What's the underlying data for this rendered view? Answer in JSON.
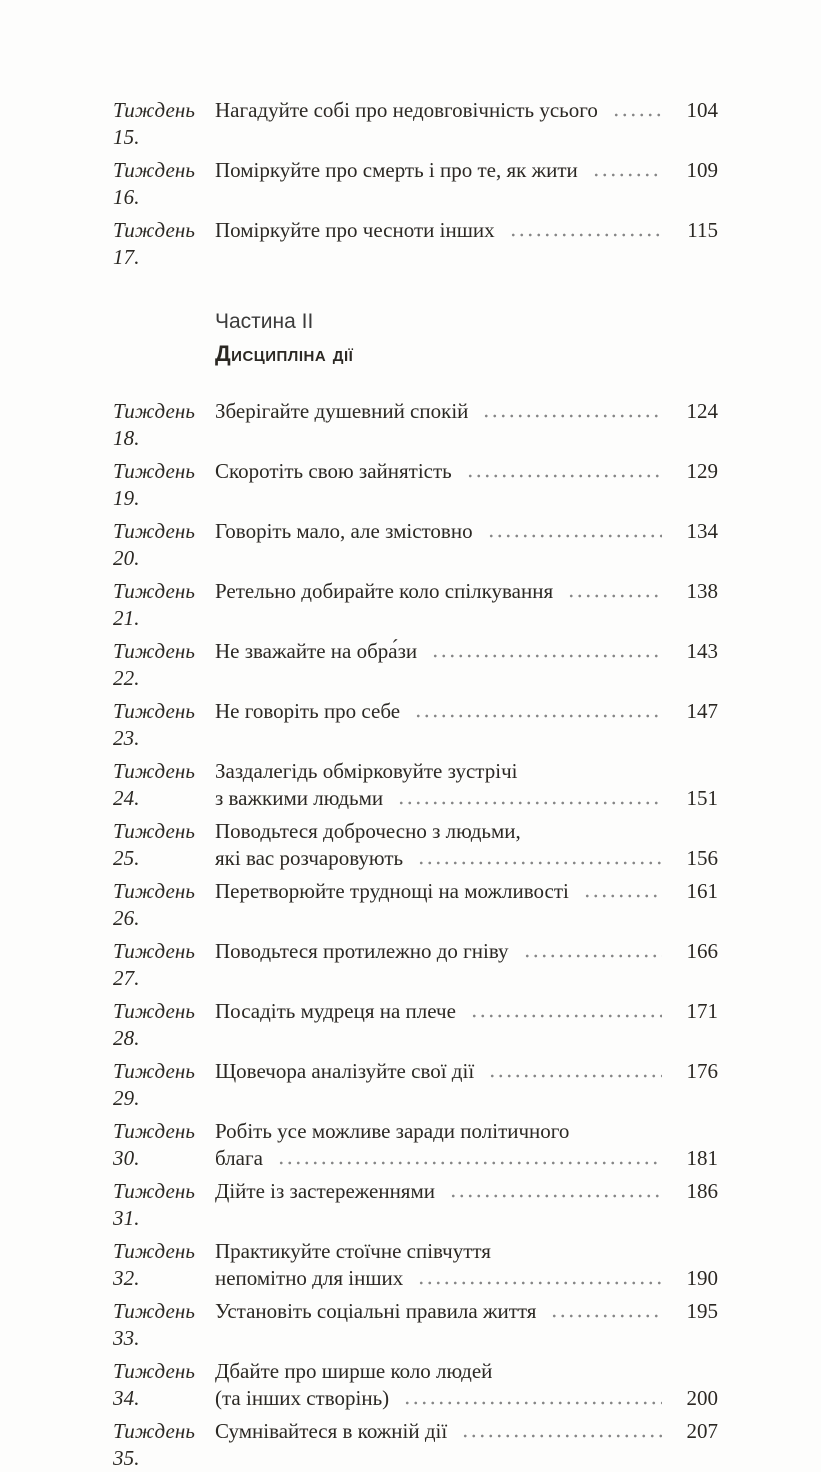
{
  "page": {
    "background_color": "#fdfdfc",
    "text_color": "#2b2823",
    "leader_dot_color": "#858585",
    "heading_color": "#3b3b3b"
  },
  "heading": {
    "part_label": "Частина II",
    "part_title": "Дисципліна дії"
  },
  "toc": {
    "part1": [
      {
        "label": "Тиждень 15.",
        "lines": [
          "Нагадуйте собі про недовговічність усього"
        ],
        "page": "104"
      },
      {
        "label": "Тиждень 16.",
        "lines": [
          "Поміркуйте про смерть і про те, як жити"
        ],
        "page": "109"
      },
      {
        "label": "Тиждень 17.",
        "lines": [
          "Поміркуйте про чесноти інших"
        ],
        "page": "115"
      }
    ],
    "part2": [
      {
        "label": "Тиждень 18.",
        "lines": [
          "Зберігайте душевний спокій"
        ],
        "page": "124"
      },
      {
        "label": "Тиждень 19.",
        "lines": [
          "Скоротіть свою зайнятість"
        ],
        "page": "129"
      },
      {
        "label": "Тиждень 20.",
        "lines": [
          "Говоріть мало, але змістовно"
        ],
        "page": "134"
      },
      {
        "label": "Тиждень 21.",
        "lines": [
          "Ретельно добирайте коло спілкування"
        ],
        "page": "138"
      },
      {
        "label": "Тиждень 22.",
        "lines": [
          "Не зважайте на обра́зи"
        ],
        "page": "143"
      },
      {
        "label": "Тиждень 23.",
        "lines": [
          "Не говоріть про себе"
        ],
        "page": "147"
      },
      {
        "label": "Тиждень 24.",
        "lines": [
          "Заздалегідь обмірковуйте зустрічі",
          "з важкими людьми"
        ],
        "page": "151"
      },
      {
        "label": "Тиждень 25.",
        "lines": [
          "Поводьтеся доброчесно з людьми,",
          "які вас розчаровують"
        ],
        "page": "156"
      },
      {
        "label": "Тиждень 26.",
        "lines": [
          "Перетворюйте труднощі на можливості"
        ],
        "page": "161"
      },
      {
        "label": "Тиждень 27.",
        "lines": [
          "Поводьтеся протилежно до гніву"
        ],
        "page": "166"
      },
      {
        "label": "Тиждень 28.",
        "lines": [
          "Посадіть мудреця на плече"
        ],
        "page": "171"
      },
      {
        "label": "Тиждень 29.",
        "lines": [
          "Щовечора аналізуйте свої дії"
        ],
        "page": "176"
      },
      {
        "label": "Тиждень 30.",
        "lines": [
          "Робіть усе можливе заради політичного",
          "блага"
        ],
        "page": "181"
      },
      {
        "label": "Тиждень 31.",
        "lines": [
          "Дійте із застереженнями"
        ],
        "page": "186"
      },
      {
        "label": "Тиждень 32.",
        "lines": [
          "Практикуйте стоїчне співчуття",
          "непомітно для інших"
        ],
        "page": "190"
      },
      {
        "label": "Тиждень 33.",
        "lines": [
          "Установіть соціальні правила життя"
        ],
        "page": "195"
      },
      {
        "label": "Тиждень 34.",
        "lines": [
          "Дбайте про ширше коло людей",
          "(та інших створінь)"
        ],
        "page": "200"
      },
      {
        "label": "Тиждень 35.",
        "lines": [
          "Сумнівайтеся в кожній дії"
        ],
        "page": "207"
      }
    ]
  }
}
